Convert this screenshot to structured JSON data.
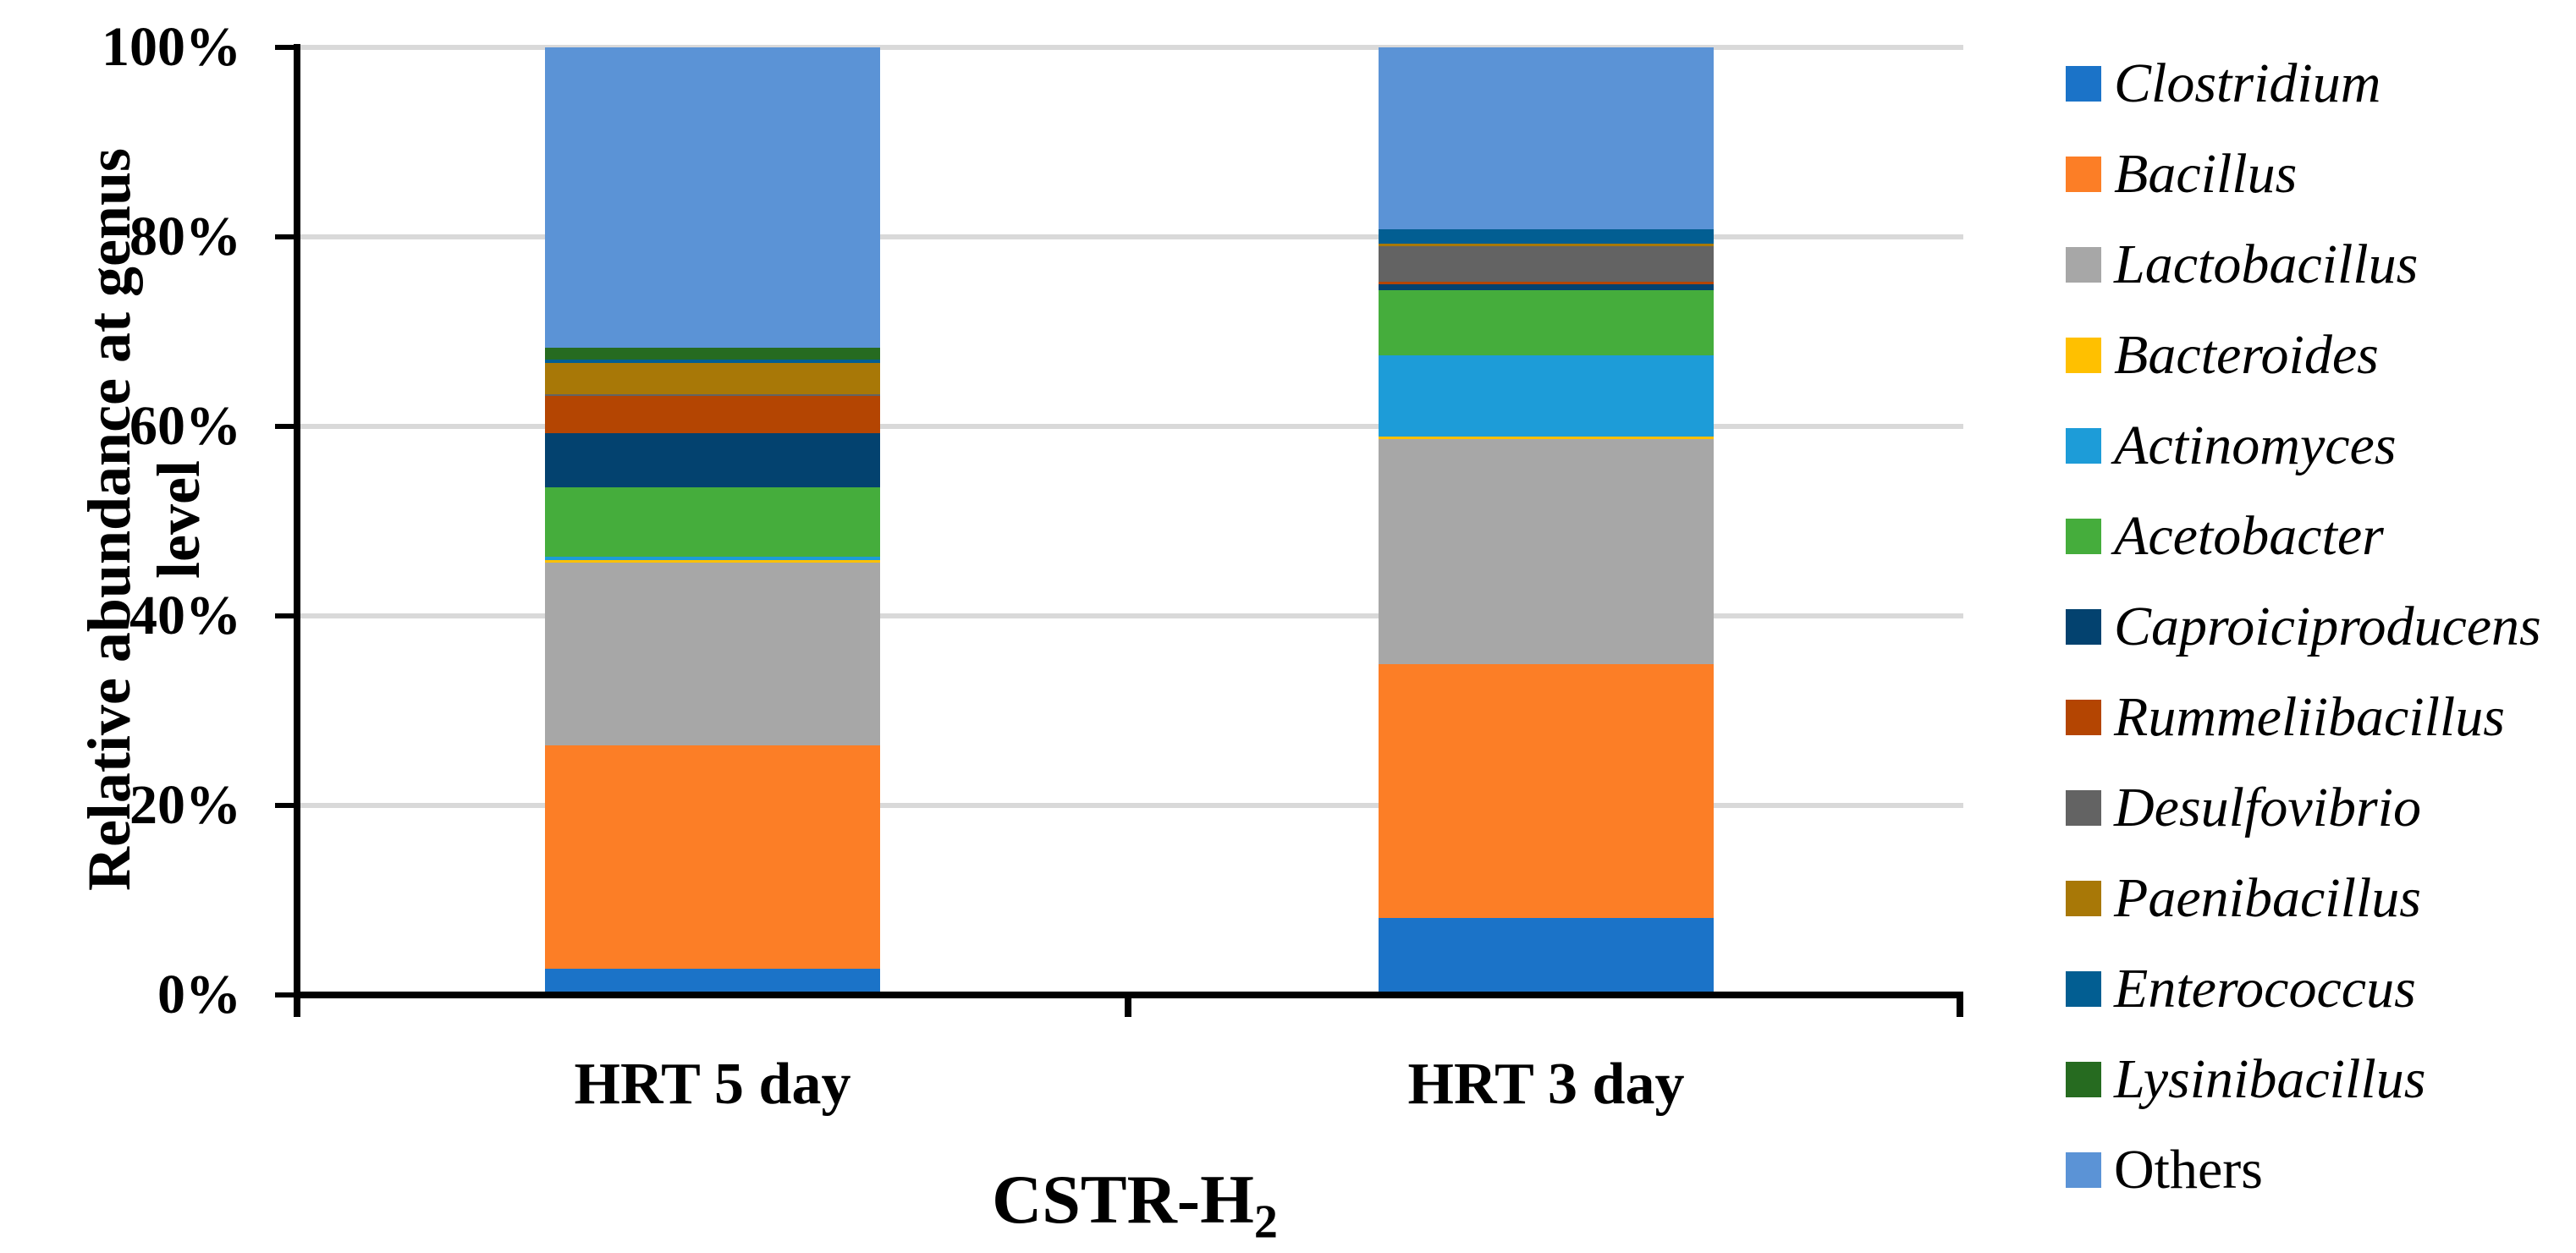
{
  "chart_data": {
    "type": "bar",
    "stacked": true,
    "grid": true,
    "legend_position": "right",
    "categories": [
      "HRT 5 day",
      "HRT 3 day"
    ],
    "xlabel": "CSTR-H2",
    "xlabel_main": "CSTR-H",
    "xlabel_sub": "2",
    "ylabel": "Relative abundance at genus level",
    "ylabel_lines": [
      "Relative abundance at genus",
      "level"
    ],
    "ylim": [
      0,
      100
    ],
    "yticks": [
      {
        "label": "0%",
        "value": 0
      },
      {
        "label": "20%",
        "value": 20
      },
      {
        "label": "40%",
        "value": 40
      },
      {
        "label": "60%",
        "value": 60
      },
      {
        "label": "80%",
        "value": 80
      },
      {
        "label": "100%",
        "value": 100
      }
    ],
    "axis_color": "#000000",
    "gridline_color": "#D9D9D9",
    "series": [
      {
        "name": "Clostridium",
        "italic": true,
        "color": "#1B73C8",
        "values": [
          2.4,
          7.8
        ]
      },
      {
        "name": "Bacillus",
        "italic": true,
        "color": "#FC7E26",
        "values": [
          23.7,
          26.9
        ]
      },
      {
        "name": "Lactobacillus",
        "italic": true,
        "color": "#A7A7A7",
        "values": [
          19.3,
          23.8
        ]
      },
      {
        "name": "Bacteroides",
        "italic": true,
        "color": "#FFC000",
        "values": [
          0.3,
          0.3
        ]
      },
      {
        "name": "Actinomyces",
        "italic": true,
        "color": "#1D9CD8",
        "values": [
          0.4,
          8.6
        ]
      },
      {
        "name": "Acetobacter",
        "italic": true,
        "color": "#45AD3C",
        "values": [
          7.3,
          6.9
        ]
      },
      {
        "name": "Caproiciproducens",
        "italic": true,
        "color": "#03426F",
        "values": [
          5.7,
          0.6
        ]
      },
      {
        "name": "Rummeliibacillus",
        "italic": true,
        "color": "#B44502",
        "values": [
          4.0,
          0.3
        ]
      },
      {
        "name": "Desulfovibrio",
        "italic": true,
        "color": "#636363",
        "values": [
          0.2,
          3.7
        ]
      },
      {
        "name": "Paenibacillus",
        "italic": true,
        "color": "#A87807",
        "values": [
          3.3,
          0.3
        ]
      },
      {
        "name": "Enterococcus",
        "italic": true,
        "color": "#025E92",
        "values": [
          0.3,
          1.5
        ]
      },
      {
        "name": "Lysinibacillus",
        "italic": true,
        "color": "#266B20",
        "values": [
          1.3,
          0.0
        ]
      },
      {
        "name": "Others",
        "italic": false,
        "color": "#5B93D6",
        "values": [
          31.8,
          19.3
        ]
      }
    ]
  }
}
